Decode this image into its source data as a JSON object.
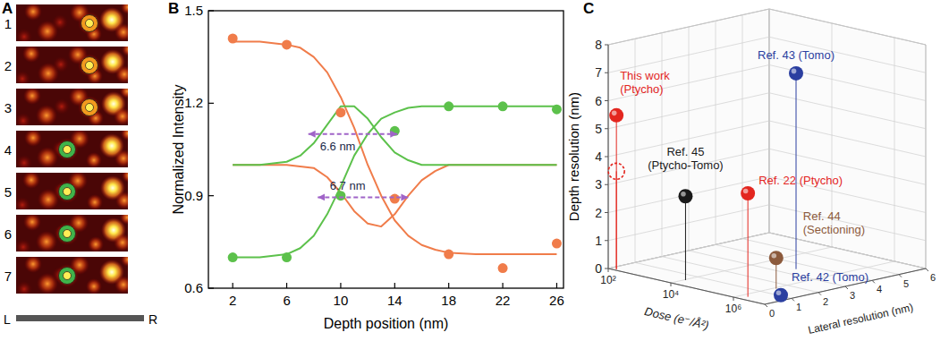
{
  "panel_a": {
    "panel": "A",
    "frames": [
      {
        "label": "1",
        "color": "#f29a1e"
      },
      {
        "label": "2",
        "color": "#f29a1e"
      },
      {
        "label": "3",
        "color": "#f29a1e"
      },
      {
        "label": "4",
        "color": "#3fb44a"
      },
      {
        "label": "5",
        "color": "#3fb44a"
      },
      {
        "label": "6",
        "color": "#3fb44a"
      },
      {
        "label": "7",
        "color": "#3fb44a"
      }
    ],
    "scale_labels": [
      "L",
      "R"
    ]
  },
  "chart_data": [
    {
      "panel": "B",
      "type": "line",
      "x_label": "Depth position (nm)",
      "y_label": "Normalized Intensity",
      "xlim": [
        0.2,
        26.5
      ],
      "xticks": [
        2,
        6,
        10,
        14,
        18,
        22,
        26
      ],
      "ylim": [
        0.6,
        1.5
      ],
      "yticks": [
        0.6,
        0.9,
        1.2,
        1.5
      ],
      "series": [
        {
          "type": "scatter",
          "color": "#f07c4a",
          "marker": "circle",
          "x": [
            2,
            6,
            10,
            14,
            18,
            22,
            26
          ],
          "values": [
            1.41,
            1.39,
            1.17,
            0.89,
            0.71,
            0.665,
            0.745
          ]
        },
        {
          "type": "scatter",
          "color": "#5cc14b",
          "marker": "circle",
          "x": [
            2,
            6,
            10,
            14,
            18,
            22,
            26
          ],
          "values": [
            0.7,
            0.7,
            0.9,
            1.11,
            1.19,
            1.19,
            1.18
          ]
        },
        {
          "type": "line",
          "color": "#f07c4a",
          "x": [
            2,
            4,
            6,
            7,
            8,
            9,
            10,
            11,
            12,
            13,
            14,
            15,
            16,
            17,
            18,
            20,
            22,
            24,
            26
          ],
          "values": [
            1.4,
            1.4,
            1.39,
            1.38,
            1.35,
            1.3,
            1.22,
            1.12,
            1.0,
            0.9,
            0.82,
            0.77,
            0.74,
            0.725,
            0.715,
            0.71,
            0.71,
            0.71,
            0.71
          ]
        },
        {
          "type": "line",
          "color": "#f07c4a",
          "x": [
            2,
            4,
            6,
            7,
            8,
            9,
            10,
            11,
            12,
            13,
            14,
            15,
            16,
            17,
            18,
            20,
            22,
            24,
            26
          ],
          "values": [
            1.0,
            1.0,
            1.0,
            0.995,
            0.99,
            0.96,
            0.91,
            0.85,
            0.81,
            0.8,
            0.84,
            0.9,
            0.95,
            0.98,
            1.0,
            1.0,
            1.0,
            1.0,
            1.0
          ]
        },
        {
          "type": "line",
          "color": "#5cc14b",
          "x": [
            2,
            4,
            6,
            7,
            8,
            9,
            10,
            11,
            12,
            13,
            14,
            15,
            16,
            17,
            18,
            20,
            22,
            24,
            26
          ],
          "values": [
            0.7,
            0.7,
            0.71,
            0.73,
            0.77,
            0.84,
            0.93,
            1.03,
            1.1,
            1.15,
            1.17,
            1.185,
            1.19,
            1.19,
            1.19,
            1.19,
            1.19,
            1.19,
            1.19
          ]
        },
        {
          "type": "line",
          "color": "#5cc14b",
          "x": [
            2,
            4,
            6,
            7,
            8,
            9,
            10,
            11,
            12,
            13,
            14,
            15,
            16,
            17,
            18,
            20,
            22,
            24,
            26
          ],
          "values": [
            1.0,
            1.0,
            1.01,
            1.03,
            1.07,
            1.13,
            1.19,
            1.19,
            1.15,
            1.09,
            1.04,
            1.015,
            1.0,
            1.0,
            1.0,
            1.0,
            1.0,
            1.0,
            1.0
          ]
        }
      ],
      "annotations": [
        {
          "text": "6.6 nm",
          "x": [
            7.6,
            14.2
          ],
          "y": 1.1,
          "color": "#a064c8",
          "line_style": "dashed"
        },
        {
          "text": "6.7 nm",
          "x": [
            8.3,
            15.0
          ],
          "y": 0.895,
          "color": "#a064c8",
          "line_style": "dashed"
        }
      ]
    },
    {
      "panel": "C",
      "type": "scatter3d",
      "x_label": "Dose (e⁻/Å²)",
      "y_label": "Lateral resolution (nm)",
      "z_label": "Depth resolution (nm)",
      "log": "x",
      "grid": true,
      "xlim": [
        100,
        10000000
      ],
      "xticks": [
        {
          "value": 100,
          "label": "10²"
        },
        {
          "value": 10000,
          "label": "10⁴"
        },
        {
          "value": 1000000,
          "label": "10⁶"
        }
      ],
      "ylim": [
        0,
        6
      ],
      "yticks": [
        0,
        1,
        2,
        3,
        4,
        5,
        6
      ],
      "zlim": [
        0,
        8
      ],
      "zticks": [
        0,
        1,
        2,
        3,
        4,
        5,
        6,
        7,
        8
      ],
      "points": [
        {
          "label": [
            "This work",
            "(Ptycho)"
          ],
          "color": "#e3261f",
          "marker": "sphere",
          "x": 150,
          "y": 0.1,
          "z": 5.5
        },
        {
          "color": "#e3261f",
          "marker": "dashed-circle",
          "x": 150,
          "y": 0.1,
          "z": 3.5
        },
        {
          "label": [
            "Ref. 45",
            "(Ptycho-Tomo)"
          ],
          "color": "#1a1a1a",
          "marker": "sphere",
          "x": 11000,
          "y": 0.5,
          "z": 3.0
        },
        {
          "label": [
            "Ref. 22 (Ptycho)"
          ],
          "color": "#e3261f",
          "marker": "sphere",
          "x": 1600000,
          "y": 0.3,
          "z": 3.7
        },
        {
          "label": [
            "Ref. 44",
            "(Sectioning)"
          ],
          "color": "#8c5a3c",
          "marker": "sphere",
          "x": 1200000,
          "y": 1.5,
          "z": 1.1
        },
        {
          "label": [
            "Ref. 42 (Tomo)"
          ],
          "color": "#2b3fa0",
          "marker": "sphere",
          "x": 10000000,
          "y": 0.6,
          "z": 0.2
        },
        {
          "label": [
            "Ref. 43 (Tomo)"
          ],
          "color": "#2b3fa0",
          "marker": "sphere",
          "x": 100000,
          "y": 3.5,
          "z": 7.0
        }
      ]
    }
  ]
}
